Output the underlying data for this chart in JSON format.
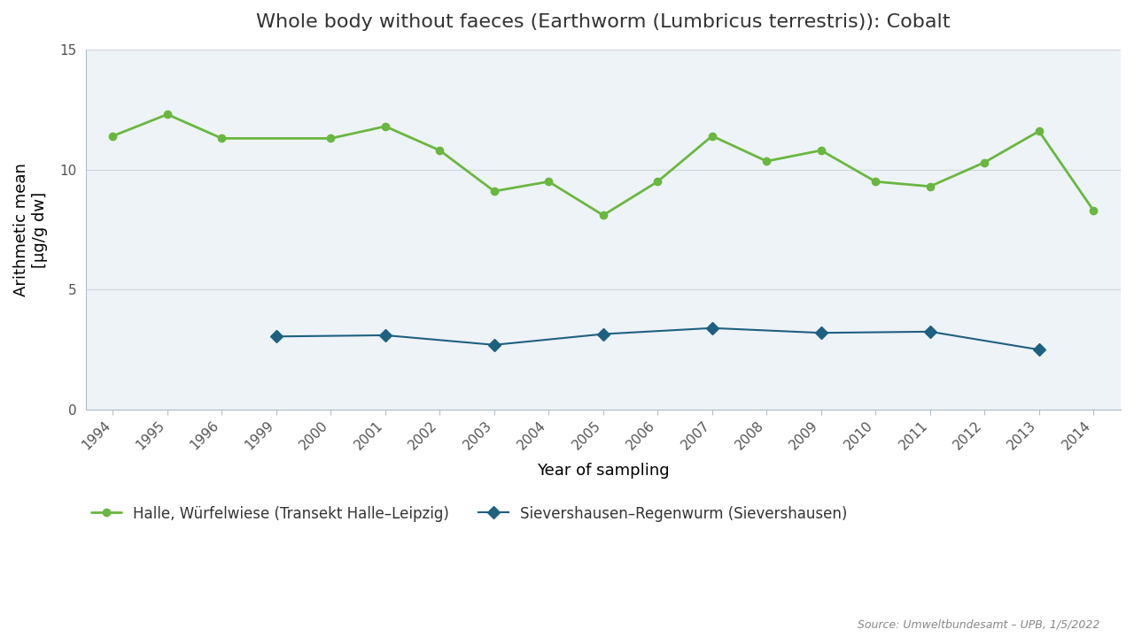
{
  "title": "Whole body without faeces (Earthworm (Lumbricus terrestris)): Cobalt",
  "xlabel": "Year of sampling",
  "ylabel": "Arithmetic mean\n[µg/g dw]",
  "source_text": "Source: Umweltbundesamt – UPB, 1/5/2022",
  "all_years": [
    1994,
    1995,
    1996,
    1999,
    2000,
    2001,
    2002,
    2003,
    2004,
    2005,
    2006,
    2007,
    2008,
    2009,
    2010,
    2011,
    2012,
    2013,
    2014
  ],
  "green_series": {
    "label": "Halle, Würfelwiese (Transekt Halle–Leipzig)",
    "color": "#6ab740",
    "x": [
      1994,
      1995,
      1996,
      2000,
      2001,
      2002,
      2003,
      2004,
      2005,
      2006,
      2007,
      2008,
      2009,
      2010,
      2011,
      2012,
      2013,
      2014
    ],
    "y": [
      11.4,
      12.3,
      11.3,
      11.3,
      11.8,
      10.8,
      9.1,
      9.5,
      8.1,
      9.5,
      11.4,
      10.35,
      10.8,
      9.5,
      9.3,
      10.3,
      11.6,
      8.3
    ]
  },
  "blue_series": {
    "label": "Sievershausen–Regenwurm (Sievershausen)",
    "color": "#1e6080",
    "x": [
      1999,
      2001,
      2003,
      2005,
      2007,
      2009,
      2011,
      2013
    ],
    "y": [
      3.05,
      3.1,
      2.7,
      3.15,
      3.4,
      3.2,
      3.25,
      2.5
    ]
  },
  "ylim": [
    0,
    15
  ],
  "yticks": [
    0,
    5,
    10,
    15
  ],
  "background_color": "#ffffff",
  "plot_area_color": "#eef3f8",
  "grid_color": "#d0d8e0",
  "title_fontsize": 16,
  "label_fontsize": 13,
  "tick_fontsize": 11,
  "legend_fontsize": 12,
  "source_fontsize": 9
}
